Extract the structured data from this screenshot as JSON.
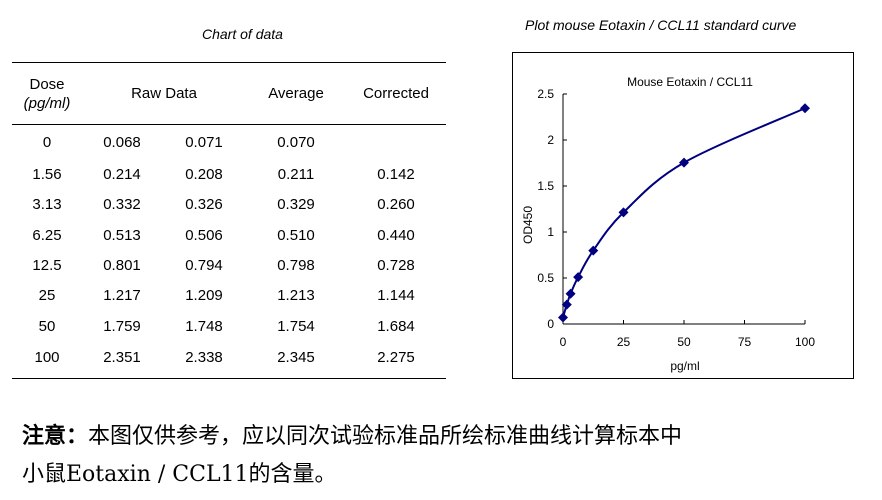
{
  "table": {
    "title": "Chart of data",
    "headers": {
      "dose": "Dose",
      "dose_unit": "(pg/ml)",
      "raw": "Raw Data",
      "average": "Average",
      "corrected": "Corrected"
    },
    "rows": [
      [
        "0",
        "0.068",
        "0.071",
        "0.070",
        ""
      ],
      [
        "1.56",
        "0.214",
        "0.208",
        "0.211",
        "0.142"
      ],
      [
        "3.13",
        "0.332",
        "0.326",
        "0.329",
        "0.260"
      ],
      [
        "6.25",
        "0.513",
        "0.506",
        "0.510",
        "0.440"
      ],
      [
        "12.5",
        "0.801",
        "0.794",
        "0.798",
        "0.728"
      ],
      [
        "25",
        "1.217",
        "1.209",
        "1.213",
        "1.144"
      ],
      [
        "50",
        "1.759",
        "1.748",
        "1.754",
        "1.684"
      ],
      [
        "100",
        "2.351",
        "2.338",
        "2.345",
        "2.275"
      ]
    ]
  },
  "chart_data": {
    "type": "line",
    "heading": "Plot mouse Eotaxin / CCL11 standard curve",
    "title": "Mouse Eotaxin / CCL11",
    "xlabel": "pg/ml",
    "ylabel": "OD450",
    "xlim": [
      0,
      100
    ],
    "ylim": [
      0,
      2.5
    ],
    "xticks": [
      "0",
      "25",
      "50",
      "75",
      "100"
    ],
    "yticks": [
      "0",
      "0.5",
      "1",
      "1.5",
      "2",
      "2.5"
    ],
    "grid": false,
    "series_color": "#000080",
    "marker": "diamond",
    "x": [
      0,
      1.56,
      3.13,
      6.25,
      12.5,
      25,
      50,
      100
    ],
    "y": [
      0.07,
      0.211,
      0.329,
      0.51,
      0.798,
      1.213,
      1.754,
      2.345
    ]
  },
  "note": {
    "label": "注意：",
    "line1": "本图仅供参考，应以同次试验标准品所绘标准曲线计算标本中",
    "line2": "小鼠Eotaxin / CCL11的含量。"
  }
}
